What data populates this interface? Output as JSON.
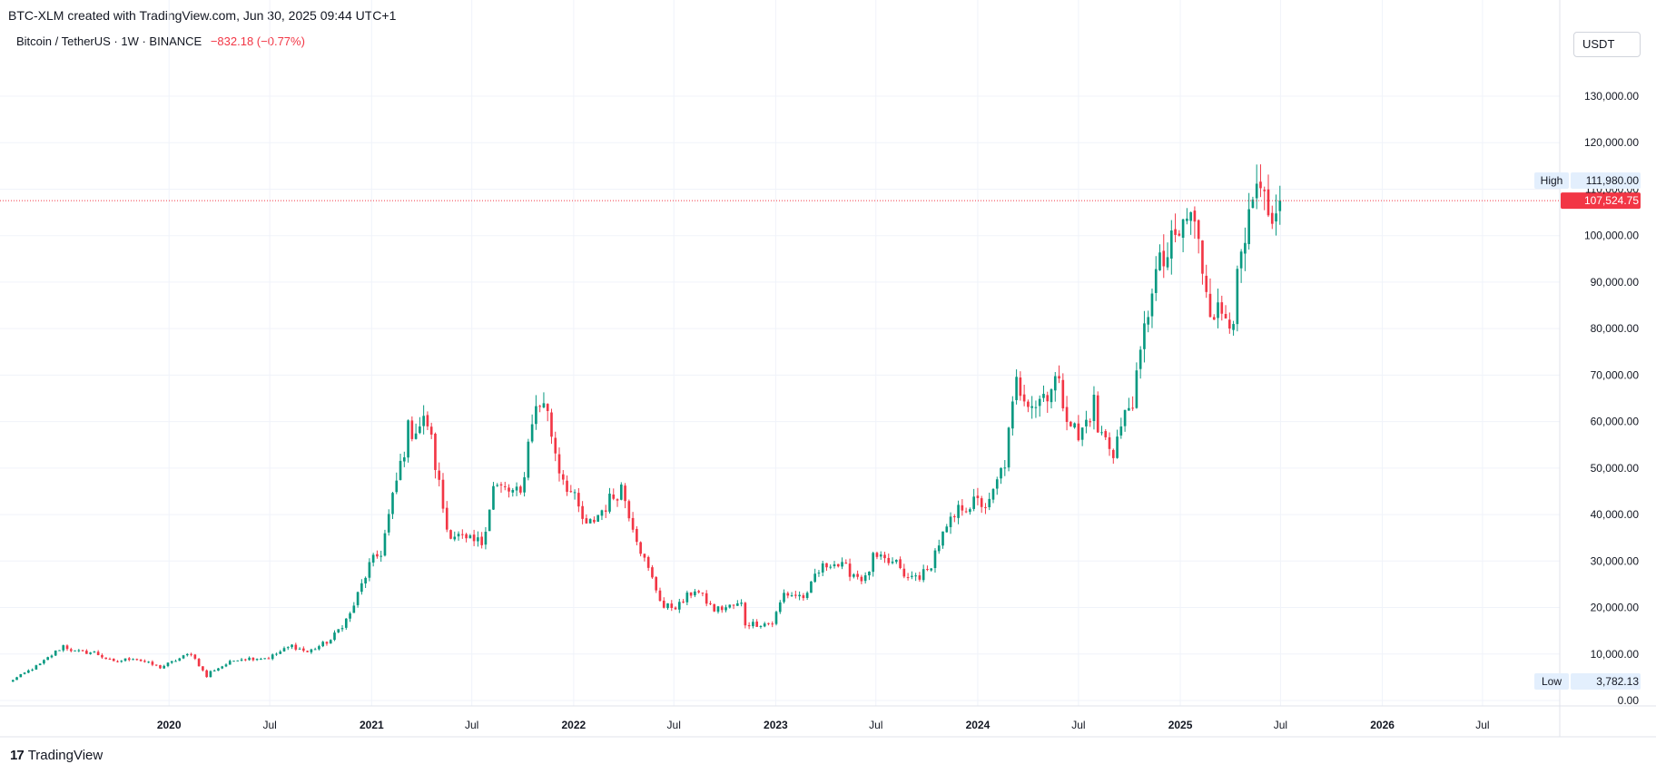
{
  "header": {
    "caption": "BTC-XLM created with TradingView.com, Jun 30, 2025 09:44 UTC+1",
    "symbol_line": "Bitcoin / TetherUS · 1W · BINANCE",
    "change": "−832.18 (−0.77%)",
    "currency": "USDT"
  },
  "footer": {
    "brand": "TradingView",
    "logo_mark": "17"
  },
  "colors": {
    "up": "#089981",
    "down": "#f23645",
    "grid": "#f0f3fa",
    "axis_text": "#131722"
  },
  "chart_data": {
    "type": "candlestick",
    "symbol": "BTC/USDT",
    "interval": "1W",
    "exchange": "BINANCE",
    "ylim": [
      0,
      140000
    ],
    "y_ticks": [
      0,
      10000,
      20000,
      30000,
      40000,
      50000,
      60000,
      70000,
      80000,
      90000,
      100000,
      110000,
      120000,
      130000
    ],
    "y_tick_labels": [
      "0.00",
      "10,000.00",
      "20,000.00",
      "30,000.00",
      "40,000.00",
      "50,000.00",
      "60,000.00",
      "70,000.00",
      "80,000.00",
      "90,000.00",
      "100,000.00",
      "110,000.00",
      "120,000.00",
      "130,000.00"
    ],
    "x_range": [
      "2019-03-18",
      "2026-10-19"
    ],
    "x_ticks": [
      {
        "date": "2020-01-01",
        "label": "2020",
        "bold": true
      },
      {
        "date": "2020-07-01",
        "label": "Jul",
        "bold": false
      },
      {
        "date": "2021-01-01",
        "label": "2021",
        "bold": true
      },
      {
        "date": "2021-07-01",
        "label": "Jul",
        "bold": false
      },
      {
        "date": "2022-01-01",
        "label": "2022",
        "bold": true
      },
      {
        "date": "2022-07-01",
        "label": "Jul",
        "bold": false
      },
      {
        "date": "2023-01-01",
        "label": "2023",
        "bold": true
      },
      {
        "date": "2023-07-01",
        "label": "Jul",
        "bold": false
      },
      {
        "date": "2024-01-01",
        "label": "2024",
        "bold": true
      },
      {
        "date": "2024-07-01",
        "label": "Jul",
        "bold": false
      },
      {
        "date": "2025-01-01",
        "label": "2025",
        "bold": true
      },
      {
        "date": "2025-07-01",
        "label": "Jul",
        "bold": false
      },
      {
        "date": "2026-01-01",
        "label": "2026",
        "bold": true
      },
      {
        "date": "2026-07-01",
        "label": "Jul",
        "bold": false
      }
    ],
    "last_price": {
      "value": 107524.75,
      "label": "107,524.75"
    },
    "high_marker": {
      "label": "High",
      "value": 111980,
      "text": "111,980.00"
    },
    "low_marker": {
      "label": "Low",
      "value": 3782.13,
      "text": "3,782.13"
    },
    "grid": true,
    "weekly_close_anchors": [
      [
        "2019-03-18",
        4000
      ],
      [
        "2019-05-13",
        7800
      ],
      [
        "2019-06-24",
        11800
      ],
      [
        "2019-07-15",
        10500
      ],
      [
        "2019-08-19",
        10300
      ],
      [
        "2019-09-23",
        8200
      ],
      [
        "2019-10-28",
        9200
      ],
      [
        "2019-12-16",
        7100
      ],
      [
        "2020-02-10",
        10200
      ],
      [
        "2020-03-09",
        5100
      ],
      [
        "2020-03-16",
        6200
      ],
      [
        "2020-05-04",
        9000
      ],
      [
        "2020-06-29",
        9200
      ],
      [
        "2020-08-10",
        11800
      ],
      [
        "2020-09-07",
        10400
      ],
      [
        "2020-10-19",
        13000
      ],
      [
        "2020-11-23",
        18500
      ],
      [
        "2020-12-28",
        29000
      ],
      [
        "2021-01-18",
        32000
      ],
      [
        "2021-02-15",
        47000
      ],
      [
        "2021-03-08",
        58000
      ],
      [
        "2021-04-12",
        60000
      ],
      [
        "2021-05-17",
        37000
      ],
      [
        "2021-06-21",
        34000
      ],
      [
        "2021-07-19",
        34000
      ],
      [
        "2021-08-09",
        46000
      ],
      [
        "2021-09-06",
        45000
      ],
      [
        "2021-09-27",
        44000
      ],
      [
        "2021-10-18",
        61000
      ],
      [
        "2021-11-08",
        65000
      ],
      [
        "2021-12-06",
        50000
      ],
      [
        "2022-01-03",
        43000
      ],
      [
        "2022-01-24",
        37000
      ],
      [
        "2022-03-28",
        46000
      ],
      [
        "2022-05-09",
        30000
      ],
      [
        "2022-06-13",
        20000
      ],
      [
        "2022-07-11",
        20500
      ],
      [
        "2022-08-08",
        24000
      ],
      [
        "2022-09-12",
        19500
      ],
      [
        "2022-10-31",
        20700
      ],
      [
        "2022-11-07",
        16500
      ],
      [
        "2022-12-26",
        16600
      ],
      [
        "2023-01-16",
        23000
      ],
      [
        "2023-02-27",
        22300
      ],
      [
        "2023-03-13",
        27000
      ],
      [
        "2023-04-10",
        30000
      ],
      [
        "2023-06-12",
        26000
      ],
      [
        "2023-06-26",
        30500
      ],
      [
        "2023-08-14",
        29000
      ],
      [
        "2023-08-21",
        26000
      ],
      [
        "2023-10-02",
        27500
      ],
      [
        "2023-10-23",
        34000
      ],
      [
        "2023-12-04",
        42000
      ],
      [
        "2024-01-08",
        42500
      ],
      [
        "2024-01-22",
        42000
      ],
      [
        "2024-02-19",
        51500
      ],
      [
        "2024-03-11",
        68000
      ],
      [
        "2024-04-15",
        64000
      ],
      [
        "2024-05-20",
        69000
      ],
      [
        "2024-07-01",
        56000
      ],
      [
        "2024-07-29",
        64000
      ],
      [
        "2024-08-05",
        58000
      ],
      [
        "2024-09-02",
        54000
      ],
      [
        "2024-10-14",
        68000
      ],
      [
        "2024-11-11",
        90000
      ],
      [
        "2024-12-16",
        97000
      ],
      [
        "2025-01-20",
        105000
      ],
      [
        "2025-02-24",
        86000
      ],
      [
        "2025-03-10",
        83000
      ],
      [
        "2025-04-07",
        84000
      ],
      [
        "2025-04-21",
        94000
      ],
      [
        "2025-05-12",
        105000
      ],
      [
        "2025-05-19",
        109000
      ],
      [
        "2025-06-16",
        101000
      ],
      [
        "2025-06-23",
        108356
      ],
      [
        "2025-06-30",
        107524.75
      ]
    ]
  }
}
